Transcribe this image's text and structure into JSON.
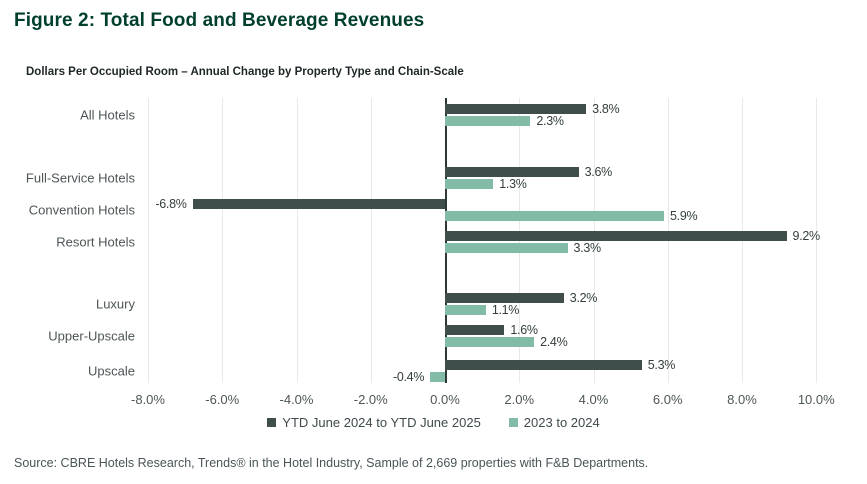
{
  "page": {
    "title": "Figure 2: Total Food and Beverage Revenues",
    "subtitle": "Dollars Per Occupied Room – Annual Change by Property Type and Chain-Scale",
    "source": "Source: CBRE Hotels Research, Trends® in the Hotel Industry, Sample of 2,669 properties with F&B Departments."
  },
  "colors": {
    "title_green": "#003F2D",
    "series1_dark": "#3F4E4B",
    "series2_green": "#82BCA6",
    "gridline": "#E8EAEA",
    "zero_line": "#2E3836",
    "axis_text": "#4D5556",
    "value_text": "#333E3D"
  },
  "chart_data": {
    "type": "bar",
    "orientation": "horizontal",
    "title": "Figure 2: Total Food and Beverage Revenues",
    "subtitle": "Dollars Per Occupied Room – Annual Change by Property Type and Chain-Scale",
    "categories": [
      "All Hotels",
      "Full-Service Hotels",
      "Convention Hotels",
      "Resort Hotels",
      "Luxury",
      "Upper-Upscale",
      "Upscale"
    ],
    "category_groups": [
      [
        "All Hotels"
      ],
      [
        "Full-Service Hotels",
        "Convention Hotels",
        "Resort Hotels"
      ],
      [
        "Luxury",
        "Upper-Upscale",
        "Upscale"
      ]
    ],
    "series": [
      {
        "name": "YTD June 2024 to YTD June 2025",
        "color": "#3F4E4B",
        "values": [
          3.8,
          3.6,
          -6.8,
          9.2,
          3.2,
          1.6,
          5.3
        ]
      },
      {
        "name": "2023 to 2024",
        "color": "#82BCA6",
        "values": [
          2.3,
          1.3,
          5.9,
          3.3,
          1.1,
          2.4,
          -0.4
        ]
      }
    ],
    "value_labels": [
      [
        "3.8%",
        "3.6%",
        "-6.8%",
        "9.2%",
        "3.2%",
        "1.6%",
        "5.3%"
      ],
      [
        "2.3%",
        "1.3%",
        "5.9%",
        "3.3%",
        "1.1%",
        "2.4%",
        "-0.4%"
      ]
    ],
    "xlim": [
      -8.2,
      10.4
    ],
    "xtick_values": [
      -8,
      -6,
      -4,
      -2,
      0,
      2,
      4,
      6,
      8,
      10
    ],
    "xticks": [
      "-8.0%",
      "-6.0%",
      "-4.0%",
      "-2.0%",
      "0.0%",
      "2.0%",
      "4.0%",
      "6.0%",
      "8.0%",
      "10.0%"
    ],
    "grid": "vertical-on",
    "legend_position": "bottom-center"
  }
}
